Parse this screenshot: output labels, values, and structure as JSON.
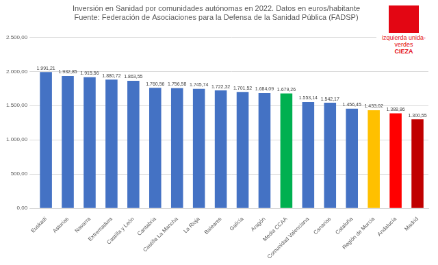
{
  "chart_data": {
    "type": "bar",
    "title": "Inversión en Sanidad por comunidades autónomas en 2022. Datos en euros/habitante Fuente: Federación de Asociaciones para la Defensa de la Sanidad Pública (FADSP)",
    "annotations": [
      "izquierda unida-verdes",
      "CIEZA"
    ],
    "categories": [
      "Euskadi",
      "Asturias",
      "Navarra",
      "Extremadura",
      "Castilla y León",
      "Cantabria",
      "Castilla La Mancha",
      "La Rioja",
      "Baleares",
      "Galicia",
      "Aragón",
      "Media CCAA",
      "Comunidad Valenciana",
      "Canarias",
      "Cataluña",
      "Región de Murcia",
      "Andalucía",
      "Madrid"
    ],
    "values": [
      1991.21,
      1932.85,
      1915.56,
      1880.72,
      1863.55,
      1760.56,
      1756.58,
      1745.74,
      1722.32,
      1701.52,
      1684.09,
      1679.26,
      1553.14,
      1542.17,
      1456.45,
      1433.02,
      1388.86,
      1300.55
    ],
    "value_labels": [
      "1.991,21",
      "1.932,85",
      "1.915,56",
      "1.880,72",
      "1.863,55",
      "1.760,56",
      "1.756,58",
      "1.745,74",
      "1.722,32",
      "1.701,52",
      "1.684,09",
      "1.679,26",
      "1.553,14",
      "1.542,17",
      "1.456,45",
      "1.433,02",
      "1.388,86",
      "1.300,55"
    ],
    "colors": [
      "#4472c4",
      "#4472c4",
      "#4472c4",
      "#4472c4",
      "#4472c4",
      "#4472c4",
      "#4472c4",
      "#4472c4",
      "#4472c4",
      "#4472c4",
      "#4472c4",
      "#00b050",
      "#4472c4",
      "#4472c4",
      "#4472c4",
      "#ffc000",
      "#ff0000",
      "#c00000"
    ],
    "data_labels": true,
    "ylim": [
      0,
      2500
    ],
    "yticks": [
      {
        "value": 0,
        "label": "0,00"
      },
      {
        "value": 500,
        "label": "500,00"
      },
      {
        "value": 1000,
        "label": "1.000,00"
      },
      {
        "value": 1500,
        "label": "1.500,00"
      },
      {
        "value": 2000,
        "label": "2.000,00"
      },
      {
        "value": 2500,
        "label": "2.500,00"
      }
    ],
    "grid": true
  }
}
